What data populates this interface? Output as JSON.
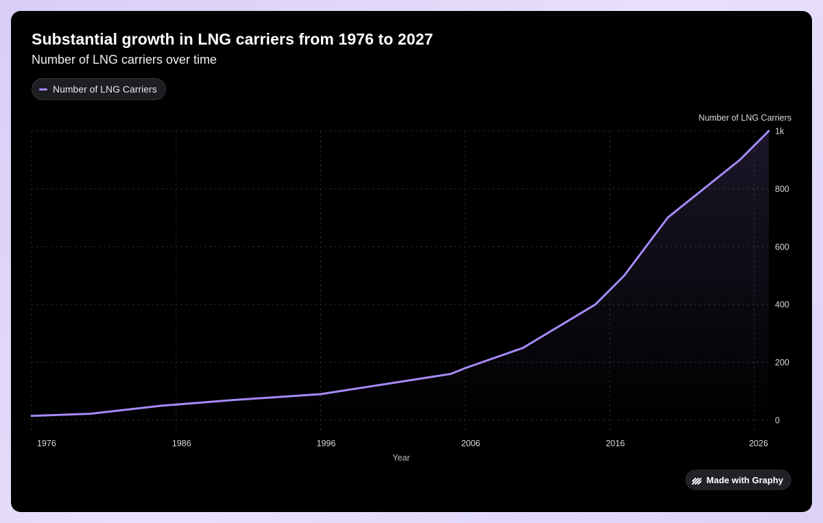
{
  "colors": {
    "background": "#000000",
    "line": "#a78bfa",
    "grid": "#2a2a2e",
    "text": "#ffffff",
    "axis_text": "#d9d9de"
  },
  "header": {
    "title": "Substantial growth in LNG carriers from 1976 to 2027",
    "subtitle": "Number of LNG carriers over time"
  },
  "legend": {
    "label": "Number of LNG Carriers"
  },
  "footer": {
    "badge_label": "Made with Graphy",
    "badge_icon": "graphy-logo-icon"
  },
  "chart_data": {
    "type": "area",
    "title": "Substantial growth in LNG carriers from 1976 to 2027",
    "subtitle": "Number of LNG carriers over time",
    "xlabel": "Year",
    "ylabel": "Number of LNG Carriers",
    "xlim": [
      1976,
      2027
    ],
    "ylim": [
      0,
      1000
    ],
    "x_ticks": [
      1976,
      1986,
      1996,
      2006,
      2016,
      2026
    ],
    "y_ticks": [
      {
        "value": 0,
        "label": "0"
      },
      {
        "value": 200,
        "label": "200"
      },
      {
        "value": 400,
        "label": "400"
      },
      {
        "value": 600,
        "label": "600"
      },
      {
        "value": 800,
        "label": "800"
      },
      {
        "value": 1000,
        "label": "1k"
      }
    ],
    "grid": true,
    "legend_position": "top-left",
    "y_axis_side": "right",
    "series": [
      {
        "name": "Number of LNG Carriers",
        "x": [
          1976,
          1980,
          1985,
          1990,
          1996,
          2005,
          2006,
          2010,
          2015,
          2017,
          2020,
          2025,
          2027
        ],
        "values": [
          15,
          22,
          50,
          70,
          90,
          160,
          180,
          250,
          400,
          500,
          700,
          900,
          1000
        ]
      }
    ]
  }
}
